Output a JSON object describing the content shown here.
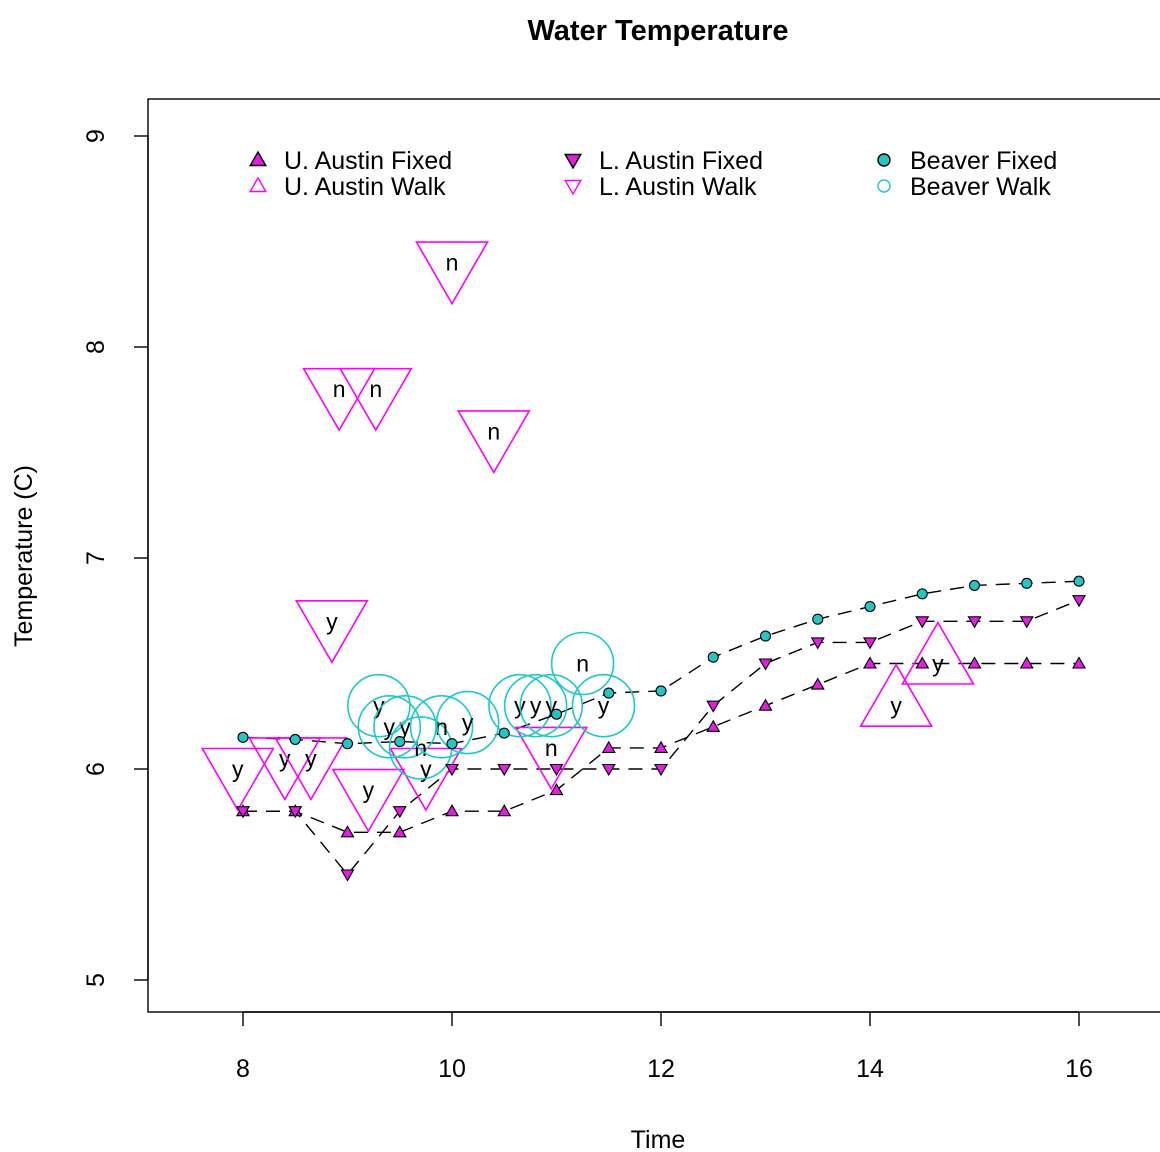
{
  "chart_data": {
    "type": "scatter",
    "title": "Water Temperature",
    "xlabel": "Time",
    "ylabel": "Temperature (C)",
    "xlim": [
      7.2,
      16.8
    ],
    "ylim": [
      4.85,
      9.2
    ],
    "xticks": [
      8,
      10,
      12,
      14,
      16
    ],
    "yticks": [
      5,
      6,
      7,
      8,
      9
    ],
    "grid": false,
    "legend_position": "top",
    "colors": {
      "magenta": "#ff00ff",
      "cyan": "#1fc8c8",
      "fixed_fill_magenta": "#e11fe1",
      "fixed_fill_cyan": "#26c4c4"
    },
    "series": [
      {
        "name": "U. Austin Fixed",
        "marker": "triangle-up-filled",
        "color": "#e11fe1",
        "line": true,
        "x": [
          8,
          8.5,
          9,
          9.5,
          10,
          10.5,
          11,
          11.5,
          12,
          12.5,
          13,
          13.5,
          14,
          14.5,
          15,
          15.5,
          16
        ],
        "y": [
          5.8,
          5.8,
          5.7,
          5.7,
          5.8,
          5.8,
          5.9,
          6.1,
          6.1,
          6.2,
          6.3,
          6.4,
          6.5,
          6.5,
          6.5,
          6.5,
          6.5
        ]
      },
      {
        "name": "L. Austin Fixed",
        "marker": "triangle-down-filled",
        "color": "#e11fe1",
        "line": true,
        "x": [
          8,
          8.5,
          9,
          9.5,
          10,
          10.5,
          11,
          11.5,
          12,
          12.5,
          13,
          13.5,
          14,
          14.5,
          15,
          15.5,
          16
        ],
        "y": [
          5.8,
          5.8,
          5.5,
          5.8,
          6.0,
          6.0,
          6.0,
          6.0,
          6.0,
          6.3,
          6.5,
          6.6,
          6.6,
          6.7,
          6.7,
          6.7,
          6.8
        ]
      },
      {
        "name": "Beaver Fixed",
        "marker": "circle-filled",
        "color": "#26c4c4",
        "line": true,
        "x": [
          8,
          8.5,
          9,
          9.5,
          10,
          10.5,
          11,
          11.5,
          12,
          12.5,
          13,
          13.5,
          14,
          14.5,
          15,
          15.5,
          16
        ],
        "y": [
          6.15,
          6.14,
          6.12,
          6.13,
          6.12,
          6.17,
          6.26,
          6.36,
          6.37,
          6.53,
          6.63,
          6.71,
          6.77,
          6.83,
          6.87,
          6.88,
          6.89
        ]
      },
      {
        "name": "U. Austin Walk",
        "marker": "triangle-up-open",
        "color": "#ff00ff",
        "line": false,
        "points": [
          {
            "x": 14.25,
            "y": 6.3,
            "label": "y"
          },
          {
            "x": 14.65,
            "y": 6.5,
            "label": "y"
          }
        ]
      },
      {
        "name": "L. Austin Walk",
        "marker": "triangle-down-open",
        "color": "#ff00ff",
        "line": false,
        "points": [
          {
            "x": 7.95,
            "y": 6.0,
            "label": "y"
          },
          {
            "x": 8.4,
            "y": 6.05,
            "label": "y"
          },
          {
            "x": 8.65,
            "y": 6.05,
            "label": "y"
          },
          {
            "x": 8.85,
            "y": 6.7,
            "label": "y"
          },
          {
            "x": 8.92,
            "y": 7.8,
            "label": "n"
          },
          {
            "x": 9.27,
            "y": 7.8,
            "label": "n"
          },
          {
            "x": 9.2,
            "y": 5.9,
            "label": "y"
          },
          {
            "x": 9.75,
            "y": 6.0,
            "label": "y"
          },
          {
            "x": 10.0,
            "y": 8.4,
            "label": "n"
          },
          {
            "x": 10.4,
            "y": 7.6,
            "label": "n"
          },
          {
            "x": 10.95,
            "y": 6.1,
            "label": "n"
          }
        ]
      },
      {
        "name": "Beaver Walk",
        "marker": "circle-open",
        "color": "#1fc8c8",
        "line": false,
        "points": [
          {
            "x": 9.3,
            "y": 6.3,
            "label": "y"
          },
          {
            "x": 9.4,
            "y": 6.2,
            "label": "y"
          },
          {
            "x": 9.55,
            "y": 6.2,
            "label": "y"
          },
          {
            "x": 9.7,
            "y": 6.1,
            "label": "n"
          },
          {
            "x": 9.9,
            "y": 6.2,
            "label": "n"
          },
          {
            "x": 10.15,
            "y": 6.22,
            "label": "y"
          },
          {
            "x": 10.65,
            "y": 6.3,
            "label": "y"
          },
          {
            "x": 10.8,
            "y": 6.3,
            "label": "y"
          },
          {
            "x": 10.95,
            "y": 6.3,
            "label": "y"
          },
          {
            "x": 11.25,
            "y": 6.5,
            "label": "n"
          },
          {
            "x": 11.45,
            "y": 6.3,
            "label": "y"
          }
        ]
      }
    ]
  }
}
